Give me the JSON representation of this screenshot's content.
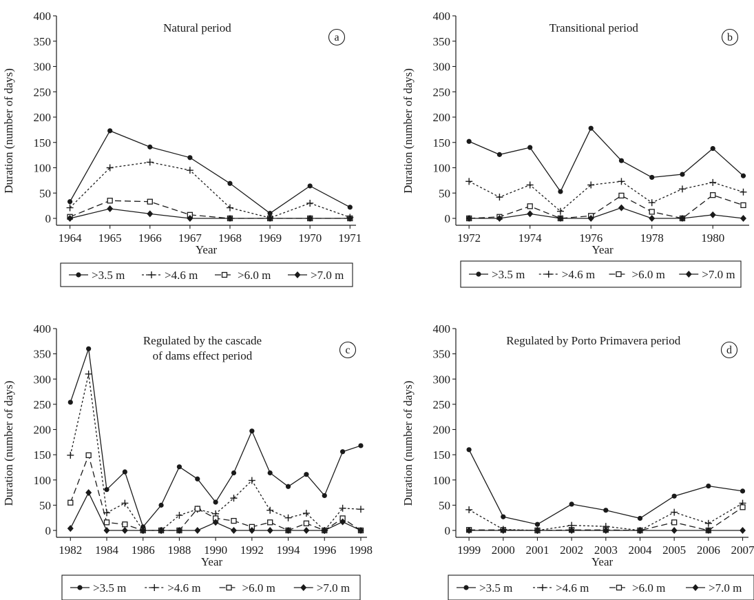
{
  "chart_data": [
    {
      "type": "line",
      "panel_label": "a",
      "title": "Natural period",
      "xlabel": "Year",
      "ylabel": "Duration (number of days)",
      "ylim": [
        0,
        400
      ],
      "yticks": [
        0,
        50,
        100,
        150,
        200,
        250,
        300,
        350,
        400
      ],
      "x": [
        1964,
        1965,
        1966,
        1967,
        1968,
        1969,
        1970,
        1971
      ],
      "xticks": [
        1964,
        1965,
        1966,
        1967,
        1968,
        1969,
        1970,
        1971
      ],
      "legend_position": "below",
      "series": [
        {
          "name": ">3.5 m",
          "marker": "circle",
          "dash": "",
          "values": [
            33,
            173,
            141,
            120,
            69,
            10,
            64,
            22
          ]
        },
        {
          "name": ">4.6 m",
          "marker": "plus",
          "dash": "3,3",
          "values": [
            21,
            100,
            111,
            95,
            21,
            1,
            30,
            2
          ]
        },
        {
          "name": ">6.0 m",
          "marker": "square",
          "dash": "9,5",
          "values": [
            3,
            35,
            33,
            7,
            0,
            0,
            0,
            0
          ]
        },
        {
          "name": ">7.0 m",
          "marker": "diamond",
          "dash": "",
          "values": [
            0,
            19,
            9,
            0,
            0,
            0,
            0,
            0
          ]
        }
      ]
    },
    {
      "type": "line",
      "panel_label": "b",
      "title": "Transitional period",
      "xlabel": "Year",
      "ylabel": "Duration (number of days)",
      "ylim": [
        0,
        400
      ],
      "yticks": [
        0,
        50,
        100,
        150,
        200,
        250,
        300,
        350,
        400
      ],
      "x": [
        1972,
        1973,
        1974,
        1975,
        1976,
        1977,
        1978,
        1979,
        1980,
        1981
      ],
      "xticks": [
        1972,
        1974,
        1976,
        1978,
        1980
      ],
      "legend_position": "below",
      "series": [
        {
          "name": ">3.5 m",
          "marker": "circle",
          "dash": "",
          "values": [
            152,
            126,
            140,
            53,
            178,
            114,
            81,
            87,
            138,
            84
          ]
        },
        {
          "name": ">4.6 m",
          "marker": "plus",
          "dash": "3,3",
          "values": [
            73,
            42,
            66,
            14,
            66,
            73,
            31,
            58,
            71,
            52
          ]
        },
        {
          "name": ">6.0 m",
          "marker": "square",
          "dash": "9,5",
          "values": [
            0,
            3,
            24,
            0,
            5,
            45,
            13,
            0,
            46,
            26
          ]
        },
        {
          "name": ">7.0 m",
          "marker": "diamond",
          "dash": "",
          "values": [
            0,
            0,
            9,
            0,
            0,
            21,
            0,
            0,
            7,
            0
          ]
        }
      ]
    },
    {
      "type": "line",
      "panel_label": "c",
      "title": "Regulated by the cascade of dams effect period",
      "title_lines": [
        "Regulated by the cascade",
        "of dams effect period"
      ],
      "xlabel": "Year",
      "ylabel": "Duration (number of days)",
      "ylim": [
        0,
        400
      ],
      "yticks": [
        0,
        50,
        100,
        150,
        200,
        250,
        300,
        350,
        400
      ],
      "x": [
        1982,
        1983,
        1984,
        1985,
        1986,
        1987,
        1988,
        1989,
        1990,
        1991,
        1992,
        1993,
        1994,
        1995,
        1996,
        1997,
        1998
      ],
      "xticks": [
        1982,
        1984,
        1986,
        1988,
        1990,
        1992,
        1994,
        1996,
        1998
      ],
      "legend_position": "below",
      "series": [
        {
          "name": ">3.5 m",
          "marker": "circle",
          "dash": "",
          "values": [
            254,
            360,
            81,
            116,
            7,
            50,
            126,
            102,
            56,
            114,
            197,
            114,
            87,
            111,
            69,
            156,
            168
          ]
        },
        {
          "name": ">4.6 m",
          "marker": "plus",
          "dash": "3,3",
          "values": [
            149,
            310,
            35,
            54,
            0,
            0,
            30,
            42,
            33,
            64,
            99,
            40,
            25,
            34,
            0,
            44,
            42
          ]
        },
        {
          "name": ">6.0 m",
          "marker": "square",
          "dash": "9,5",
          "values": [
            55,
            149,
            16,
            12,
            0,
            0,
            0,
            43,
            24,
            19,
            7,
            16,
            0,
            14,
            0,
            24,
            0
          ]
        },
        {
          "name": ">7.0 m",
          "marker": "diamond",
          "dash": "",
          "values": [
            4,
            75,
            0,
            0,
            0,
            0,
            0,
            0,
            16,
            0,
            0,
            0,
            0,
            0,
            0,
            17,
            0
          ]
        }
      ]
    },
    {
      "type": "line",
      "panel_label": "d",
      "title": "Regulated by Porto Primavera period",
      "xlabel": "Year",
      "ylabel": "Duration (number of days)",
      "ylim": [
        0,
        400
      ],
      "yticks": [
        0,
        50,
        100,
        150,
        200,
        250,
        300,
        350,
        400
      ],
      "x": [
        1999,
        2000,
        2001,
        2002,
        2003,
        2004,
        2005,
        2006,
        2007
      ],
      "xticks": [
        1999,
        2000,
        2001,
        2002,
        2003,
        2004,
        2005,
        2006,
        2007
      ],
      "legend_position": "below",
      "series": [
        {
          "name": ">3.5 m",
          "marker": "circle",
          "dash": "",
          "values": [
            160,
            27,
            12,
            52,
            40,
            24,
            68,
            88,
            78
          ]
        },
        {
          "name": ">4.6 m",
          "marker": "plus",
          "dash": "3,3",
          "values": [
            41,
            2,
            0,
            10,
            8,
            0,
            36,
            14,
            54
          ]
        },
        {
          "name": ">6.0 m",
          "marker": "square",
          "dash": "9,5",
          "values": [
            1,
            1,
            0,
            1,
            1,
            0,
            16,
            0,
            46
          ]
        },
        {
          "name": ">7.0 m",
          "marker": "diamond",
          "dash": "",
          "values": [
            0,
            0,
            0,
            0,
            0,
            0,
            0,
            0,
            0
          ]
        }
      ]
    }
  ]
}
